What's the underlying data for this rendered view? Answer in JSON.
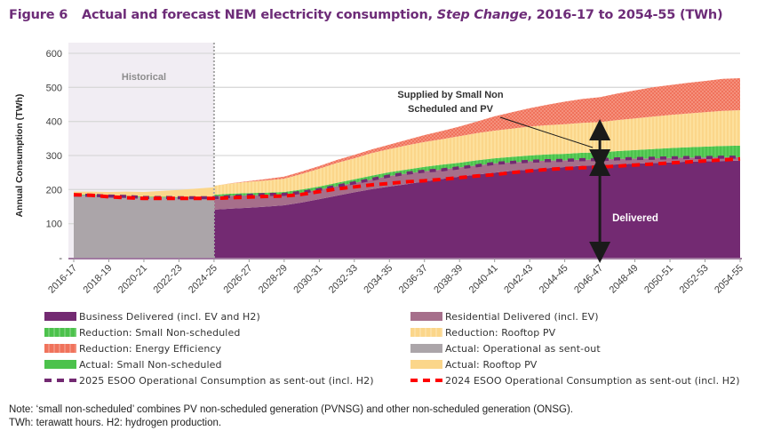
{
  "header": {
    "figure_label": "Figure 6",
    "title_part1": "Actual and forecast NEM electricity consumption, ",
    "title_italic": "Step Change",
    "title_part2": ", 2016-17 to 2054-55 (TWh)"
  },
  "chart_data": {
    "type": "area",
    "title": "Actual and forecast NEM electricity consumption, Step Change, 2016-17 to 2054-55 (TWh)",
    "xlabel": "",
    "ylabel": "Annual Consumption (TWh)",
    "ylim": [
      0,
      600
    ],
    "yticks": [
      0,
      100,
      200,
      300,
      400,
      500,
      600
    ],
    "ytick_labels": [
      "-",
      "100",
      "200",
      "300",
      "400",
      "500",
      "600"
    ],
    "grid": true,
    "stacked": true,
    "legend_position": "bottom",
    "x": [
      "2016-17",
      "2017-18",
      "2018-19",
      "2019-20",
      "2020-21",
      "2021-22",
      "2022-23",
      "2023-24",
      "2024-25",
      "2025-26",
      "2026-27",
      "2027-28",
      "2028-29",
      "2029-30",
      "2030-31",
      "2031-32",
      "2032-33",
      "2033-34",
      "2034-35",
      "2035-36",
      "2036-37",
      "2037-38",
      "2038-39",
      "2039-40",
      "2040-41",
      "2041-42",
      "2042-43",
      "2043-44",
      "2044-45",
      "2045-46",
      "2046-47",
      "2047-48",
      "2048-49",
      "2049-50",
      "2050-51",
      "2051-52",
      "2052-53",
      "2053-54",
      "2054-55"
    ],
    "xtick_labels": [
      "2016-17",
      "2018-19",
      "2020-21",
      "2022-23",
      "2024-25",
      "2026-27",
      "2028-29",
      "2030-31",
      "2032-33",
      "2034-35",
      "2036-37",
      "2038-39",
      "2040-41",
      "2042-43",
      "2044-45",
      "2046-47",
      "2048-49",
      "2050-51",
      "2052-53",
      "2054-55"
    ],
    "historical_region": {
      "label": "Historical",
      "from": "2016-17",
      "to": "2024-25"
    },
    "series": [
      {
        "name": "Actual: Operational as sent-out",
        "color": "#aba5a9",
        "values": [
          184,
          183,
          181,
          180,
          177,
          177,
          176,
          176,
          176,
          null,
          null,
          null,
          null,
          null,
          null,
          null,
          null,
          null,
          null,
          null,
          null,
          null,
          null,
          null,
          null,
          null,
          null,
          null,
          null,
          null,
          null,
          null,
          null,
          null,
          null,
          null,
          null,
          null,
          null
        ]
      },
      {
        "name": "Actual: Small Non-scheduled",
        "color": "#4cc24c",
        "values": [
          2,
          2,
          2,
          2,
          2,
          2,
          2,
          3,
          3,
          null,
          null,
          null,
          null,
          null,
          null,
          null,
          null,
          null,
          null,
          null,
          null,
          null,
          null,
          null,
          null,
          null,
          null,
          null,
          null,
          null,
          null,
          null,
          null,
          null,
          null,
          null,
          null,
          null,
          null
        ]
      },
      {
        "name": "Actual: Rooftop PV",
        "color": "#fbd68a",
        "values": [
          8,
          9,
          10,
          12,
          14,
          17,
          21,
          24,
          28,
          null,
          null,
          null,
          null,
          null,
          null,
          null,
          null,
          null,
          null,
          null,
          null,
          null,
          null,
          null,
          null,
          null,
          null,
          null,
          null,
          null,
          null,
          null,
          null,
          null,
          null,
          null,
          null,
          null,
          null
        ]
      },
      {
        "name": "Business Delivered (incl. EV and H2)",
        "color": "#732a72",
        "values": [
          null,
          null,
          null,
          null,
          null,
          null,
          null,
          null,
          141,
          144,
          147,
          150,
          154,
          162,
          172,
          182,
          192,
          201,
          209,
          216,
          224,
          231,
          238,
          244,
          250,
          255,
          259,
          263,
          266,
          270,
          272,
          274,
          276,
          278,
          280,
          282,
          283,
          284,
          285
        ]
      },
      {
        "name": "Residential Delivered (incl. EV)",
        "color": "#a66f8b",
        "values": [
          null,
          null,
          null,
          null,
          null,
          null,
          null,
          null,
          39,
          38,
          36,
          34,
          31,
          29,
          28,
          28,
          28,
          29,
          31,
          31,
          30,
          28,
          27,
          27,
          27,
          25,
          24,
          22,
          20,
          18,
          16,
          16,
          15,
          14,
          13,
          12,
          11,
          11,
          10
        ]
      },
      {
        "name": "Reduction: Small Non-scheduled",
        "color": "#4cc24c",
        "values": [
          null,
          null,
          null,
          null,
          null,
          null,
          null,
          null,
          5,
          6,
          7,
          7,
          8,
          9,
          9,
          10,
          10,
          11,
          11,
          12,
          13,
          14,
          14,
          15,
          15,
          16,
          17,
          18,
          19,
          20,
          21,
          23,
          25,
          27,
          29,
          30,
          32,
          33,
          34
        ]
      },
      {
        "name": "Reduction: Rooftop PV",
        "color": "#fbd68a",
        "values": [
          null,
          null,
          null,
          null,
          null,
          null,
          null,
          null,
          26,
          30,
          33,
          36,
          39,
          46,
          52,
          58,
          62,
          66,
          68,
          71,
          73,
          75,
          78,
          80,
          81,
          83,
          85,
          86,
          87,
          88,
          89,
          91,
          93,
          95,
          97,
          99,
          101,
          103,
          104
        ]
      },
      {
        "name": "Reduction: Energy Efficiency",
        "color": "#f0735c",
        "values": [
          null,
          null,
          null,
          null,
          null,
          null,
          null,
          null,
          0,
          1,
          2,
          4,
          6,
          7,
          8,
          9,
          10,
          11,
          13,
          16,
          20,
          24,
          28,
          34,
          42,
          48,
          54,
          60,
          66,
          70,
          73,
          78,
          82,
          86,
          88,
          90,
          92,
          94,
          94
        ]
      },
      {
        "name": "2025 ESOO Operational Consumption as sent-out (incl. H2)",
        "style": "dashed",
        "color": "#732a72",
        "values": [
          184,
          183,
          181,
          180,
          177,
          177,
          176,
          176,
          176,
          180,
          183,
          186,
          186,
          192,
          200,
          210,
          220,
          230,
          240,
          248,
          254,
          258,
          264,
          270,
          277,
          280,
          283,
          285,
          286,
          288,
          288,
          290,
          291,
          292,
          293,
          294,
          294,
          295,
          295
        ]
      },
      {
        "name": "2024 ESOO Operational Consumption as sent-out (incl. H2)",
        "style": "dashed",
        "color": "#ff0000",
        "values": [
          185,
          183,
          179,
          176,
          174,
          174,
          174,
          174,
          174,
          176,
          178,
          180,
          181,
          186,
          194,
          202,
          208,
          214,
          218,
          223,
          226,
          230,
          235,
          240,
          244,
          250,
          255,
          259,
          262,
          264,
          266,
          269,
          272,
          275,
          278,
          281,
          284,
          287,
          290
        ]
      }
    ],
    "annotations": [
      {
        "text": "Supplied by Small Non Scheduled and PV",
        "points_to": "2046-47"
      },
      {
        "text": "Delivered",
        "points_to": "2046-47"
      }
    ]
  },
  "annotations": {
    "historical": "Historical",
    "supplied_line1": "Supplied by Small Non",
    "supplied_line2": "Scheduled and PV",
    "delivered": "Delivered"
  },
  "legend": [
    {
      "label": "Business Delivered (incl. EV and H2)",
      "color": "#732a72",
      "kind": "solid"
    },
    {
      "label": "Residential Delivered (incl. EV)",
      "color": "#a66f8b",
      "kind": "solid"
    },
    {
      "label": "Reduction: Small Non-scheduled",
      "color": "#4cc24c",
      "kind": "hatched"
    },
    {
      "label": "Reduction: Rooftop PV",
      "color": "#fbd68a",
      "kind": "hatched"
    },
    {
      "label": "Reduction: Energy Efficiency",
      "color": "#f0735c",
      "kind": "hatched"
    },
    {
      "label": "Actual: Operational as sent-out",
      "color": "#aba5a9",
      "kind": "solid"
    },
    {
      "label": "Actual: Small Non-scheduled",
      "color": "#4cc24c",
      "kind": "solid"
    },
    {
      "label": "Actual: Rooftop PV",
      "color": "#fbd68a",
      "kind": "solid"
    },
    {
      "label": "2025 ESOO Operational Consumption as sent-out (incl. H2)",
      "color": "#732a72",
      "kind": "dashed"
    },
    {
      "label": "2024 ESOO Operational Consumption as sent-out (incl. H2)",
      "color": "#ff0000",
      "kind": "dashed"
    }
  ],
  "notes": {
    "line1": "Note: ‘small non-scheduled’ combines PV non-scheduled generation (PVNSG) and other non-scheduled generation (ONSG).",
    "line2": "TWh: terawatt hours. H2: hydrogen production."
  }
}
